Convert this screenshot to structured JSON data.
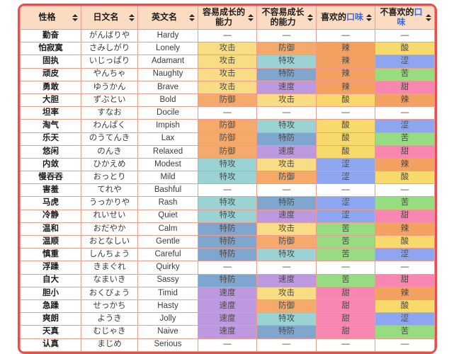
{
  "table": {
    "empty_value": "—",
    "columns": [
      {
        "text": "性格"
      },
      {
        "text": "日文名"
      },
      {
        "text": "英文名"
      },
      {
        "text": "容易成长的能力"
      },
      {
        "text": "不容易成长的能力"
      },
      {
        "text": "喜欢的",
        "link": "口味"
      },
      {
        "text": "不喜欢的",
        "link": "口味"
      }
    ],
    "rows": [
      {
        "cn": "勤奋",
        "jp": "がんばりや",
        "en": "Hardy",
        "up": "—",
        "down": "—",
        "like": "—",
        "dislike": "—"
      },
      {
        "cn": "怕寂寞",
        "jp": "さみしがり",
        "en": "Lonely",
        "up": "攻击",
        "down": "防御",
        "like": "辣",
        "dislike": "酸"
      },
      {
        "cn": "固执",
        "jp": "いじっぱり",
        "en": "Adamant",
        "up": "攻击",
        "down": "特攻",
        "like": "辣",
        "dislike": "涩"
      },
      {
        "cn": "顽皮",
        "jp": "やんちゃ",
        "en": "Naughty",
        "up": "攻击",
        "down": "特防",
        "like": "辣",
        "dislike": "苦"
      },
      {
        "cn": "勇敢",
        "jp": "ゆうかん",
        "en": "Brave",
        "up": "攻击",
        "down": "速度",
        "like": "辣",
        "dislike": "甜"
      },
      {
        "cn": "大胆",
        "jp": "ずぶとい",
        "en": "Bold",
        "up": "防御",
        "down": "攻击",
        "like": "酸",
        "dislike": "辣"
      },
      {
        "cn": "坦率",
        "jp": "すなお",
        "en": "Docile",
        "up": "—",
        "down": "—",
        "like": "—",
        "dislike": "—"
      },
      {
        "cn": "淘气",
        "jp": "わんぱく",
        "en": "Impish",
        "up": "防御",
        "down": "特攻",
        "like": "酸",
        "dislike": "涩"
      },
      {
        "cn": "乐天",
        "jp": "のうてんき",
        "en": "Lax",
        "up": "防御",
        "down": "特防",
        "like": "酸",
        "dislike": "苦"
      },
      {
        "cn": "悠闲",
        "jp": "のんき",
        "en": "Relaxed",
        "up": "防御",
        "down": "速度",
        "like": "酸",
        "dislike": "甜"
      },
      {
        "cn": "内敛",
        "jp": "ひかえめ",
        "en": "Modest",
        "up": "特攻",
        "down": "攻击",
        "like": "涩",
        "dislike": "辣"
      },
      {
        "cn": "慢吞吞",
        "jp": "おっとり",
        "en": "Mild",
        "up": "特攻",
        "down": "防御",
        "like": "涩",
        "dislike": "酸"
      },
      {
        "cn": "害羞",
        "jp": "てれや",
        "en": "Bashful",
        "up": "—",
        "down": "—",
        "like": "—",
        "dislike": "—"
      },
      {
        "cn": "马虎",
        "jp": "うっかりや",
        "en": "Rash",
        "up": "特攻",
        "down": "特防",
        "like": "涩",
        "dislike": "苦"
      },
      {
        "cn": "冷静",
        "jp": "れいせい",
        "en": "Quiet",
        "up": "特攻",
        "down": "速度",
        "like": "涩",
        "dislike": "甜"
      },
      {
        "cn": "温和",
        "jp": "おだやか",
        "en": "Calm",
        "up": "特防",
        "down": "攻击",
        "like": "苦",
        "dislike": "辣"
      },
      {
        "cn": "温顺",
        "jp": "おとなしい",
        "en": "Gentle",
        "up": "特防",
        "down": "防御",
        "like": "苦",
        "dislike": "酸"
      },
      {
        "cn": "慎重",
        "jp": "しんちょう",
        "en": "Careful",
        "up": "特防",
        "down": "特攻",
        "like": "苦",
        "dislike": "涩"
      },
      {
        "cn": "浮躁",
        "jp": "きまぐれ",
        "en": "Quirky",
        "up": "—",
        "down": "—",
        "like": "—",
        "dislike": "—"
      },
      {
        "cn": "自大",
        "jp": "なまいき",
        "en": "Sassy",
        "up": "特防",
        "down": "速度",
        "like": "苦",
        "dislike": "甜"
      },
      {
        "cn": "胆小",
        "jp": "おくびょう",
        "en": "Timid",
        "up": "速度",
        "down": "攻击",
        "like": "甜",
        "dislike": "辣"
      },
      {
        "cn": "急躁",
        "jp": "せっかち",
        "en": "Hasty",
        "up": "速度",
        "down": "防御",
        "like": "甜",
        "dislike": "酸"
      },
      {
        "cn": "爽朗",
        "jp": "ようき",
        "en": "Jolly",
        "up": "速度",
        "down": "特攻",
        "like": "甜",
        "dislike": "涩"
      },
      {
        "cn": "天真",
        "jp": "むじゃき",
        "en": "Naive",
        "up": "速度",
        "down": "特防",
        "like": "甜",
        "dislike": "苦"
      },
      {
        "cn": "认真",
        "jp": "まじめ",
        "en": "Serious",
        "up": "—",
        "down": "—",
        "like": "—",
        "dislike": "—"
      }
    ]
  },
  "colors": {
    "accent_border": "#ee4c4c",
    "header_bg": "#fbdcc2",
    "cell_border": "#f19a8e",
    "link": "#3d6bd6",
    "stat": {
      "攻击": "#f9dd85",
      "防御": "#f5aa6c",
      "特攻": "#9bd3d4",
      "特防": "#7fa6ce",
      "速度": "#bd9adf"
    },
    "flavor": {
      "辣": "#f2a161",
      "酸": "#f8d96b",
      "涩": "#8ea6ef",
      "苦": "#98dc81",
      "甜": "#f787b0"
    }
  }
}
